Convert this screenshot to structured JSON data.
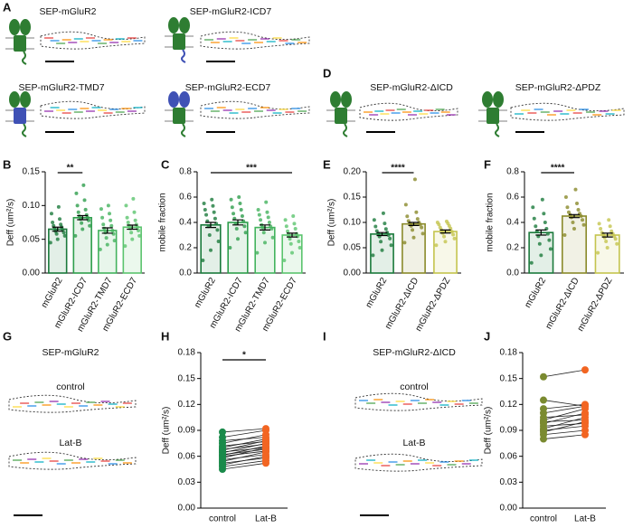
{
  "image_panels": [
    {
      "label": "A",
      "captions": [
        "SEP-mGluR2",
        "SEP-mGluR2-ICD7",
        "SEP-mGluR2-TMD7",
        "SEP-mGluR2-ECD7"
      ]
    },
    {
      "label": "D",
      "captions": [
        "SEP-mGluR2-ΔICD",
        "SEP-mGluR2-ΔPDZ"
      ]
    },
    {
      "label": "G",
      "caption": "SEP-mGluR2",
      "conditions": [
        "control",
        "Lat-B"
      ]
    },
    {
      "label": "I",
      "caption": "SEP-mGluR2-ΔICD",
      "conditions": [
        "control",
        "Lat-B"
      ]
    }
  ],
  "chart_data": [
    {
      "type": "bar",
      "panel": "B",
      "y_label": "Deff (um²/s)",
      "categories": [
        "mGluR2",
        "mGluR2-ICD7",
        "mGluR2-TMD7",
        "mGluR2-ECD7"
      ],
      "colors": [
        "#1b7a3c",
        "#2e9e4c",
        "#43b35e",
        "#5bc46e"
      ],
      "values": [
        0.065,
        0.082,
        0.063,
        0.068
      ],
      "errors": [
        0.003,
        0.003,
        0.004,
        0.003
      ],
      "points": [
        [
          0.045,
          0.05,
          0.055,
          0.058,
          0.06,
          0.062,
          0.064,
          0.066,
          0.068,
          0.07,
          0.072,
          0.075,
          0.08,
          0.088,
          0.098
        ],
        [
          0.055,
          0.065,
          0.07,
          0.074,
          0.078,
          0.08,
          0.082,
          0.084,
          0.086,
          0.09,
          0.094,
          0.1,
          0.108,
          0.118,
          0.13
        ],
        [
          0.035,
          0.042,
          0.048,
          0.052,
          0.058,
          0.06,
          0.063,
          0.066,
          0.07,
          0.072,
          0.078,
          0.082,
          0.088,
          0.095,
          0.1
        ],
        [
          0.04,
          0.05,
          0.055,
          0.06,
          0.063,
          0.066,
          0.068,
          0.07,
          0.072,
          0.075,
          0.078,
          0.082,
          0.09,
          0.1,
          0.11
        ]
      ],
      "ylim": [
        0,
        0.15
      ],
      "yticks": [
        {
          "value": 0,
          "label": "0.00"
        },
        0.05,
        {
          "value": 0.1,
          "label": "0.10"
        },
        0.15
      ],
      "annotation": {
        "text": "**",
        "span": [
          "mGluR2",
          "mGluR2-ICD7"
        ]
      }
    },
    {
      "type": "bar",
      "panel": "C",
      "y_label": "mobile fraction",
      "categories": [
        "mGluR2",
        "mGluR2-ICD7",
        "mGluR2-TMD7",
        "mGluR2-ECD7"
      ],
      "colors": [
        "#1b7a3c",
        "#2e9e4c",
        "#43b35e",
        "#5bc46e"
      ],
      "values": [
        0.38,
        0.4,
        0.36,
        0.3
      ],
      "errors": [
        0.02,
        0.02,
        0.02,
        0.015
      ],
      "points": [
        [
          0.1,
          0.18,
          0.25,
          0.3,
          0.34,
          0.37,
          0.39,
          0.41,
          0.43,
          0.46,
          0.48,
          0.5,
          0.53,
          0.55,
          0.58
        ],
        [
          0.2,
          0.27,
          0.32,
          0.35,
          0.37,
          0.39,
          0.41,
          0.43,
          0.45,
          0.47,
          0.5,
          0.52,
          0.55,
          0.58,
          0.6
        ],
        [
          0.16,
          0.24,
          0.28,
          0.32,
          0.35,
          0.36,
          0.37,
          0.38,
          0.4,
          0.42,
          0.44,
          0.46,
          0.48,
          0.5,
          0.56
        ],
        [
          0.1,
          0.16,
          0.2,
          0.23,
          0.25,
          0.27,
          0.29,
          0.3,
          0.31,
          0.33,
          0.35,
          0.37,
          0.39,
          0.42,
          0.45
        ]
      ],
      "ylim": [
        0,
        0.8
      ],
      "yticks": [
        {
          "value": 0,
          "label": "0.0"
        },
        0.2,
        0.4,
        0.6,
        0.8
      ],
      "annotation": {
        "text": "***",
        "span": [
          "mGluR2",
          "mGluR2-ECD7"
        ]
      }
    },
    {
      "type": "bar",
      "panel": "E",
      "y_label": "Deff (um²/s)",
      "categories": [
        "mGluR2",
        "mGluR2-ΔICD",
        "mGluR2-ΔPDZ"
      ],
      "colors": [
        "#1b7a3c",
        "#8a8a2a",
        "#c4c44e"
      ],
      "values": [
        0.077,
        0.097,
        0.082
      ],
      "errors": [
        0.003,
        0.003,
        0.003
      ],
      "points": [
        [
          0.035,
          0.045,
          0.055,
          0.062,
          0.068,
          0.072,
          0.075,
          0.078,
          0.08,
          0.083,
          0.087,
          0.092,
          0.098,
          0.105,
          0.118
        ],
        [
          0.06,
          0.07,
          0.078,
          0.085,
          0.09,
          0.093,
          0.096,
          0.098,
          0.1,
          0.103,
          0.107,
          0.112,
          0.12,
          0.135,
          0.185
        ],
        [
          0.055,
          0.062,
          0.068,
          0.072,
          0.076,
          0.079,
          0.082,
          0.085,
          0.088,
          0.09,
          0.093,
          0.096,
          0.098,
          0.1,
          0.102
        ]
      ],
      "ylim": [
        0,
        0.2
      ],
      "yticks": [
        {
          "value": 0,
          "label": "0.00"
        },
        0.05,
        {
          "value": 0.1,
          "label": "0.10"
        },
        0.15,
        {
          "value": 0.2,
          "label": "0.20"
        }
      ],
      "annotation": {
        "text": "****",
        "span": [
          "mGluR2",
          "mGluR2-ΔICD"
        ]
      }
    },
    {
      "type": "bar",
      "panel": "F",
      "y_label": "mobile fraction",
      "categories": [
        "mGluR2",
        "mGluR2-ΔICD",
        "mGluR2-ΔPDZ"
      ],
      "colors": [
        "#1b7a3c",
        "#8a8a2a",
        "#c4c44e"
      ],
      "values": [
        0.32,
        0.45,
        0.3
      ],
      "errors": [
        0.02,
        0.012,
        0.015
      ],
      "points": [
        [
          0.08,
          0.14,
          0.19,
          0.23,
          0.26,
          0.29,
          0.31,
          0.33,
          0.35,
          0.37,
          0.4,
          0.43,
          0.47,
          0.52,
          0.58
        ],
        [
          0.3,
          0.35,
          0.38,
          0.4,
          0.42,
          0.44,
          0.45,
          0.46,
          0.47,
          0.48,
          0.5,
          0.52,
          0.55,
          0.6,
          0.66
        ],
        [
          0.16,
          0.2,
          0.23,
          0.25,
          0.27,
          0.28,
          0.29,
          0.3,
          0.31,
          0.32,
          0.33,
          0.35,
          0.37,
          0.39,
          0.42
        ]
      ],
      "ylim": [
        0,
        0.8
      ],
      "yticks": [
        {
          "value": 0,
          "label": "0.0"
        },
        0.2,
        0.4,
        0.6,
        0.8
      ],
      "annotation": {
        "text": "****",
        "span": [
          "mGluR2",
          "mGluR2-ΔICD"
        ]
      }
    },
    {
      "type": "paired",
      "panel": "H",
      "y_label": "Deff (um²/s)",
      "categories": [
        "control",
        "Lat-B"
      ],
      "colors": [
        "#1a8a4a",
        "#f26522"
      ],
      "pairs": [
        [
          0.045,
          0.052
        ],
        [
          0.048,
          0.055
        ],
        [
          0.05,
          0.06
        ],
        [
          0.052,
          0.058
        ],
        [
          0.054,
          0.065
        ],
        [
          0.056,
          0.062
        ],
        [
          0.058,
          0.07
        ],
        [
          0.06,
          0.066
        ],
        [
          0.061,
          0.072
        ],
        [
          0.062,
          0.068
        ],
        [
          0.064,
          0.075
        ],
        [
          0.065,
          0.07
        ],
        [
          0.067,
          0.078
        ],
        [
          0.068,
          0.074
        ],
        [
          0.07,
          0.08
        ],
        [
          0.072,
          0.077
        ],
        [
          0.075,
          0.085
        ],
        [
          0.078,
          0.082
        ],
        [
          0.082,
          0.09
        ],
        [
          0.088,
          0.092
        ]
      ],
      "ylim": [
        0,
        0.18
      ],
      "yticks": [
        {
          "value": 0,
          "label": "0.00"
        },
        0.03,
        0.06,
        0.09,
        0.12,
        0.15,
        0.18
      ],
      "annotation": {
        "text": "*",
        "span": [
          "control",
          "Lat-B"
        ]
      }
    },
    {
      "type": "paired",
      "panel": "J",
      "y_label": "Deff (um²/s)",
      "categories": [
        "control",
        "Lat-B"
      ],
      "colors": [
        "#7a8a30",
        "#f26522"
      ],
      "pairs": [
        [
          0.08,
          0.085
        ],
        [
          0.085,
          0.09
        ],
        [
          0.088,
          0.1
        ],
        [
          0.09,
          0.095
        ],
        [
          0.092,
          0.105
        ],
        [
          0.095,
          0.098
        ],
        [
          0.098,
          0.11
        ],
        [
          0.1,
          0.102
        ],
        [
          0.102,
          0.115
        ],
        [
          0.105,
          0.108
        ],
        [
          0.11,
          0.118
        ],
        [
          0.115,
          0.12
        ],
        [
          0.125,
          0.118
        ],
        [
          0.152,
          0.16
        ]
      ],
      "ylim": [
        0,
        0.18
      ],
      "yticks": [
        {
          "value": 0,
          "label": "0.00"
        },
        0.03,
        0.06,
        0.09,
        0.12,
        0.15,
        0.18
      ]
    }
  ]
}
